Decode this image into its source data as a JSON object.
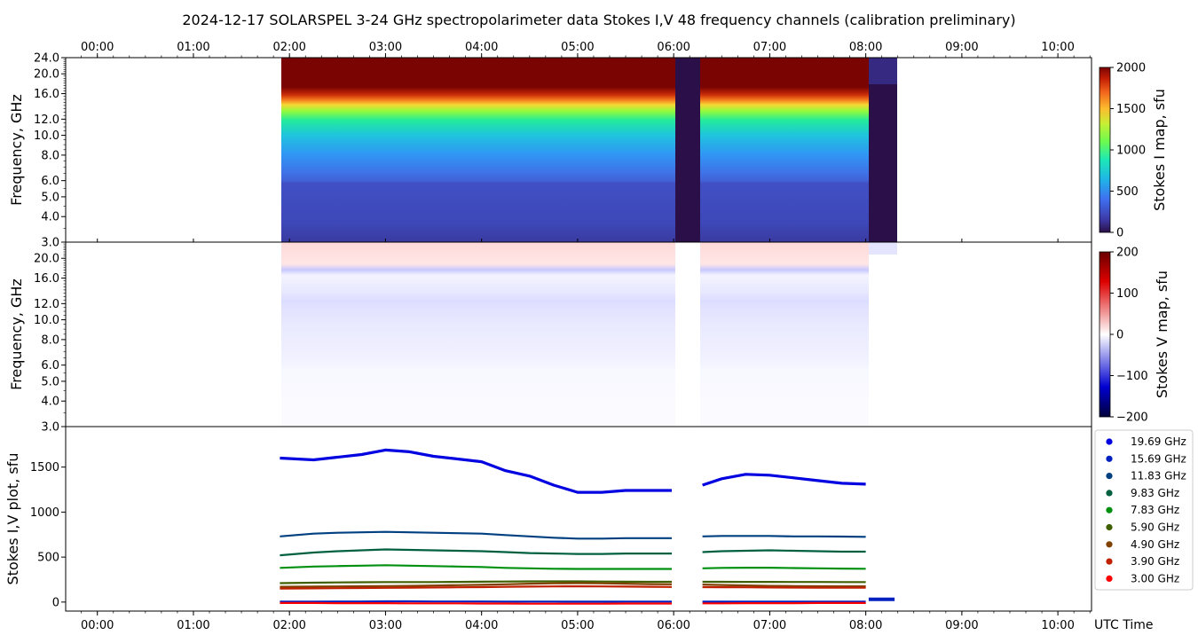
{
  "title": "2024-12-17  SOLARSPEL  3-24 GHz spectropolarimeter data   Stokes I,V   48 frequency channels   (calibration preliminary)",
  "time_ticks": [
    "00:00",
    "01:00",
    "02:00",
    "03:00",
    "04:00",
    "05:00",
    "06:00",
    "07:00",
    "08:00",
    "09:00",
    "10:00"
  ],
  "time_axis_label": "UTC Time",
  "chart_data": [
    {
      "type": "heatmap",
      "name": "stokes-i-map",
      "ylabel": "Frequency, GHz",
      "x_range_hours": [
        -0.33,
        10.35
      ],
      "y_range_ghz": [
        3.0,
        24.0
      ],
      "y_scale": "log",
      "y_ticks": [
        "3.0",
        "4.0",
        "5.0",
        "6.0",
        "8.0",
        "10.0",
        "12.0",
        "16.0",
        "20.0",
        "24.0"
      ],
      "y_tick_values": [
        3.0,
        4.0,
        5.0,
        6.0,
        8.0,
        10.0,
        12.0,
        16.0,
        20.0,
        24.0
      ],
      "data_coverage_hours": [
        1.9,
        8.3
      ],
      "gaps_hours": [
        [
          6.0,
          6.25
        ],
        [
          8.03,
          8.3
        ]
      ],
      "colorbar": {
        "label": "Stokes I map, sfu",
        "ticks": [
          "0",
          "500",
          "1000",
          "1500",
          "2000"
        ],
        "range": [
          0,
          2000
        ]
      }
    },
    {
      "type": "heatmap",
      "name": "stokes-v-map",
      "ylabel": "Frequency, GHz",
      "x_range_hours": [
        -0.33,
        10.35
      ],
      "y_range_ghz": [
        3.0,
        24.0
      ],
      "y_scale": "log",
      "y_ticks": [
        "3.0",
        "4.0",
        "5.0",
        "6.0",
        "8.0",
        "10.0",
        "12.0",
        "16.0",
        "20.0"
      ],
      "y_tick_values": [
        3.0,
        4.0,
        5.0,
        6.0,
        8.0,
        10.0,
        12.0,
        16.0,
        20.0
      ],
      "colorbar": {
        "label": "Stokes V map, sfu",
        "ticks": [
          "200",
          "100",
          "0",
          "−100",
          "−200"
        ],
        "range": [
          -200,
          200
        ]
      }
    },
    {
      "type": "line",
      "name": "stokes-iv-plot",
      "ylabel": "Stokes I,V plot, sfu",
      "xlabel": "UTC Time",
      "x_range_hours": [
        -0.33,
        10.35
      ],
      "ylim": [
        -100,
        1950
      ],
      "y_ticks": [
        "0",
        "500",
        "1000",
        "1500"
      ],
      "y_tick_values": [
        0,
        500,
        1000,
        1500
      ],
      "x": [
        1.9,
        2.25,
        2.5,
        2.75,
        3.0,
        3.25,
        3.5,
        3.75,
        4.0,
        4.25,
        4.5,
        4.75,
        5.0,
        5.25,
        5.5,
        5.75,
        5.98,
        6.3,
        6.5,
        6.75,
        7.0,
        7.25,
        7.5,
        7.75,
        8.0
      ],
      "series": [
        {
          "name": "19.69 GHz",
          "color": "#0000e0",
          "values": [
            1600,
            1580,
            1610,
            1640,
            1690,
            1670,
            1620,
            1590,
            1560,
            1460,
            1400,
            1300,
            1220,
            1220,
            1240,
            1240,
            1240,
            1300,
            1370,
            1420,
            1410,
            1380,
            1350,
            1320,
            1310
          ]
        },
        {
          "name": "15.69 GHz",
          "color": "#0020c0",
          "values": [
            5,
            5,
            6,
            6,
            8,
            8,
            6,
            6,
            6,
            5,
            5,
            5,
            4,
            4,
            5,
            5,
            5,
            4,
            4,
            5,
            5,
            5,
            5,
            5,
            5
          ]
        },
        {
          "name": "11.83 GHz",
          "color": "#004080",
          "values": [
            730,
            760,
            770,
            775,
            780,
            775,
            770,
            765,
            760,
            745,
            730,
            715,
            705,
            705,
            710,
            710,
            710,
            730,
            735,
            735,
            735,
            730,
            730,
            728,
            725
          ]
        },
        {
          "name": "9.83 GHz",
          "color": "#006040",
          "values": [
            520,
            550,
            565,
            575,
            585,
            580,
            575,
            570,
            565,
            555,
            545,
            540,
            535,
            535,
            540,
            540,
            540,
            555,
            565,
            570,
            575,
            570,
            565,
            560,
            560
          ]
        },
        {
          "name": "7.83 GHz",
          "color": "#009010",
          "values": [
            380,
            395,
            400,
            405,
            410,
            405,
            400,
            395,
            390,
            380,
            375,
            370,
            368,
            368,
            368,
            368,
            368,
            375,
            380,
            382,
            382,
            378,
            375,
            372,
            370
          ]
        },
        {
          "name": "5.90 GHz",
          "color": "#406000",
          "values": [
            210,
            215,
            218,
            220,
            222,
            222,
            222,
            224,
            226,
            228,
            230,
            230,
            230,
            228,
            226,
            225,
            225,
            225,
            225,
            224,
            224,
            223,
            223,
            222,
            222
          ]
        },
        {
          "name": "4.90 GHz",
          "color": "#804000",
          "values": [
            170,
            172,
            174,
            176,
            178,
            180,
            184,
            188,
            192,
            198,
            205,
            208,
            210,
            208,
            205,
            200,
            198,
            195,
            190,
            185,
            180,
            178,
            176,
            175,
            175
          ]
        },
        {
          "name": "3.90 GHz",
          "color": "#c02000",
          "values": [
            150,
            152,
            154,
            156,
            158,
            160,
            162,
            164,
            166,
            170,
            172,
            174,
            175,
            174,
            172,
            170,
            168,
            166,
            165,
            164,
            162,
            161,
            160,
            160,
            160
          ]
        },
        {
          "name": "3.00 GHz",
          "color": "#ff0000",
          "values": [
            -10,
            -10,
            -12,
            -12,
            -12,
            -14,
            -14,
            -14,
            -16,
            -16,
            -18,
            -18,
            -18,
            -18,
            -16,
            -16,
            -16,
            -14,
            -14,
            -12,
            -12,
            -12,
            -10,
            -10,
            -10
          ]
        }
      ]
    }
  ]
}
